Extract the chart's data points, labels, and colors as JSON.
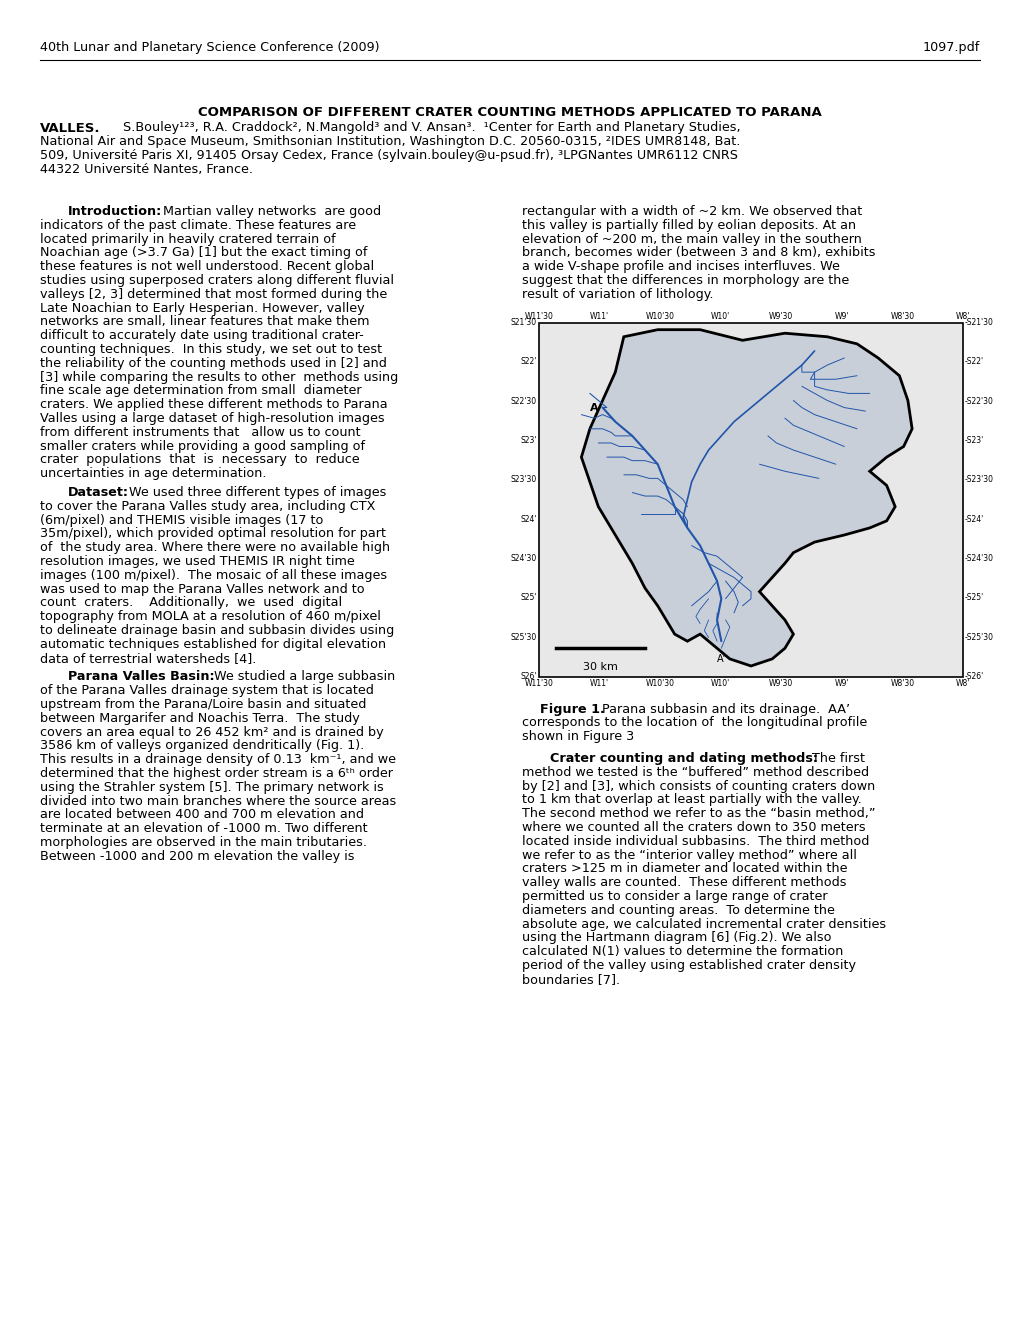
{
  "header_left": "40th Lunar and Planetary Science Conference (2009)",
  "header_right": "1097.pdf",
  "title_line1": "COMPARISON OF DIFFERENT CRATER COUNTING METHODS APPLICATED TO PARANA",
  "title_line2_bold": "VALLES.",
  "title_line2_rest": "  S.Bouley",
  "title_superscripts": "1,2,3",
  "title_line2_after": ", R.A. Craddock",
  "title_affil1": "National Air and Space Museum, Smithsonian Institution, Washington D.C. 20560-0315, ²IDES UMR8148, Bat.",
  "title_affil2": "509, Université Paris XI, 91405 Orsay Cedex, France (sylvain.bouley@u-psud.fr), ³LPGNantes UMR6112 CNRS",
  "title_affil3": "44322 Université Nantes, France.",
  "background_color": "#ffffff",
  "text_color": "#000000"
}
